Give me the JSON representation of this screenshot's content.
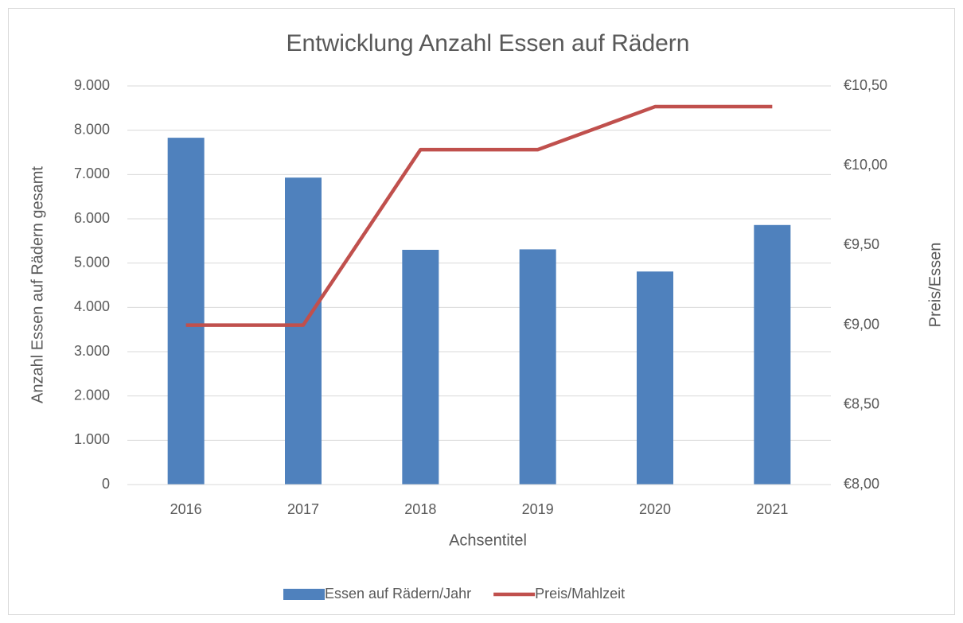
{
  "chart_data": {
    "type": "combo",
    "title": "Entwicklung Anzahl Essen auf Rädern",
    "x_label": "Achsentitel",
    "y_label": "Anzahl Essen auf Rädern gesamt",
    "y2_label": "Preis/Essen",
    "categories": [
      "2016",
      "2017",
      "2018",
      "2019",
      "2020",
      "2021"
    ],
    "series": [
      {
        "name": "Essen auf Rädern/Jahr",
        "type": "bar",
        "color": "#4f81bd",
        "values": [
          7830,
          6930,
          5300,
          5310,
          4810,
          5860
        ]
      },
      {
        "name": "Preis/Mahlzeit",
        "type": "line",
        "axis": "y2",
        "color": "#c0504d",
        "values": [
          9.0,
          9.0,
          10.1,
          10.1,
          10.37,
          10.37
        ]
      }
    ],
    "ylim": [
      0,
      9000
    ],
    "yticks": [
      0,
      {
        "value": 1000,
        "label": "1.000"
      },
      {
        "value": 2000,
        "label": "2.000"
      },
      {
        "value": 3000,
        "label": "3.000"
      },
      {
        "value": 4000,
        "label": "4.000"
      },
      {
        "value": 5000,
        "label": "5.000"
      },
      {
        "value": 6000,
        "label": "6.000"
      },
      {
        "value": 7000,
        "label": "7.000"
      },
      {
        "value": 8000,
        "label": "8.000"
      },
      {
        "value": 9000,
        "label": "9.000"
      }
    ],
    "y2lim": [
      8.0,
      10.5
    ],
    "y2ticks": [
      {
        "value": 8.0,
        "label": "€8,00"
      },
      {
        "value": 8.5,
        "label": "€8,50"
      },
      {
        "value": 9.0,
        "label": "€9,00"
      },
      {
        "value": 9.5,
        "label": "€9,50"
      },
      {
        "value": 10.0,
        "label": "€10,00"
      },
      {
        "value": 10.5,
        "label": "€10,50"
      }
    ],
    "grid": true,
    "legend": "bottom"
  }
}
